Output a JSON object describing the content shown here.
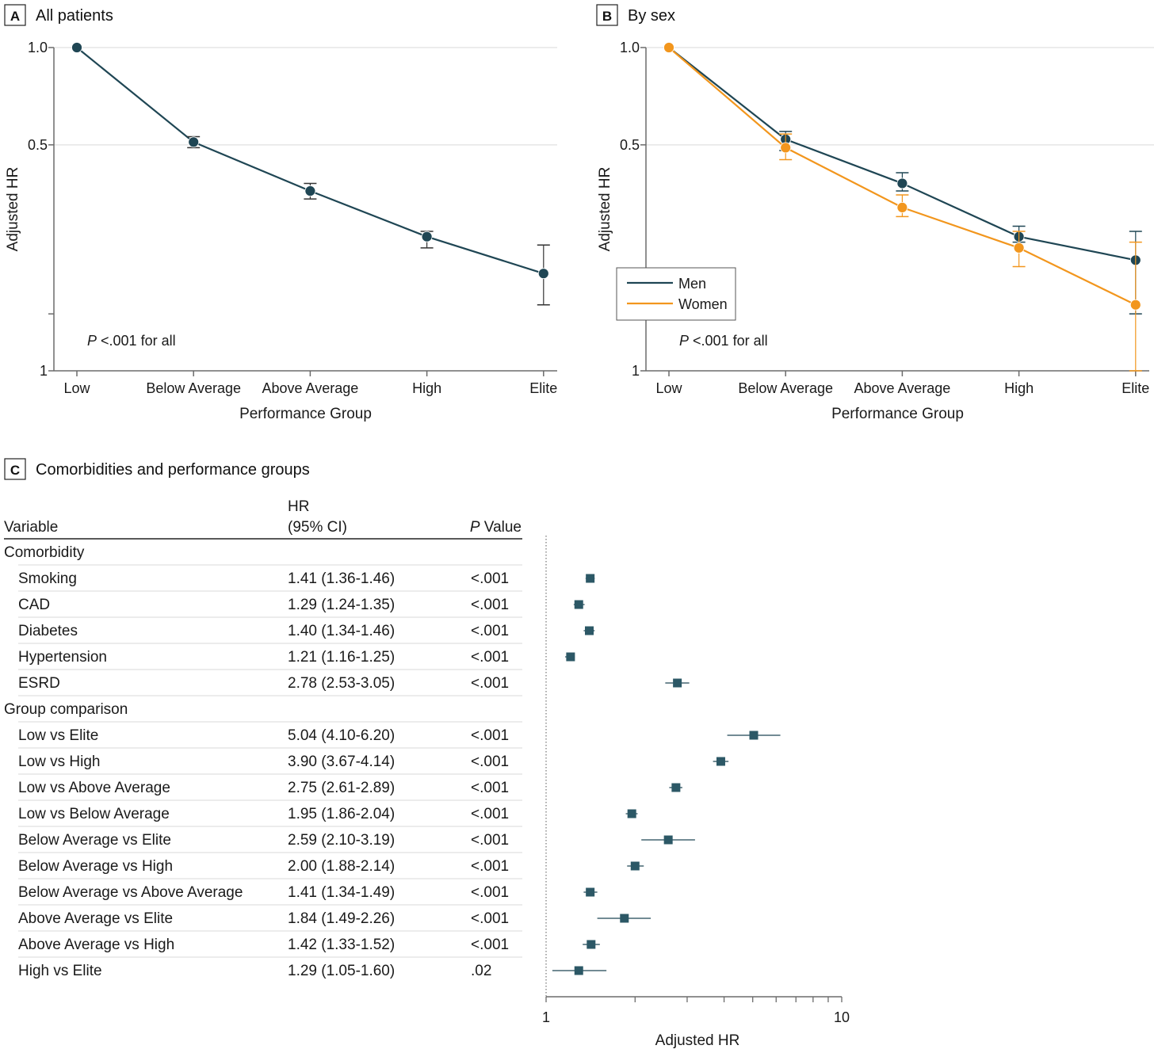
{
  "colors": {
    "men": "#1f4654",
    "women": "#f2961d",
    "axis": "#6b6b6b",
    "grid": "#d9d9d9"
  },
  "chart_data": [
    {
      "type": "line",
      "panel_letter": "A",
      "title": "All patients",
      "xlabel": "Performance Group",
      "ylabel": "Adjusted HR",
      "yscale": "log",
      "ylim": [
        0.1,
        1.0
      ],
      "ytick_labels": [
        "1.0",
        "0.5",
        "1"
      ],
      "categories": [
        "Low",
        "Below Average",
        "Above Average",
        "High",
        "Elite"
      ],
      "annotation": "<.001 for all",
      "annotation_p": "P",
      "series": [
        {
          "name": "All patients",
          "color": "#1f4654",
          "values": [
            1.0,
            0.51,
            0.36,
            0.26,
            0.2
          ],
          "ci_low": [
            null,
            0.49,
            0.34,
            0.24,
            0.16
          ],
          "ci_high": [
            null,
            0.53,
            0.38,
            0.27,
            0.245
          ]
        }
      ]
    },
    {
      "type": "line",
      "panel_letter": "B",
      "title": "By sex",
      "xlabel": "Performance Group",
      "ylabel": "Adjusted HR",
      "yscale": "log",
      "ylim": [
        0.1,
        1.0
      ],
      "ytick_labels": [
        "1.0",
        "0.5",
        "1"
      ],
      "categories": [
        "Low",
        "Below Average",
        "Above Average",
        "High",
        "Elite"
      ],
      "annotation": "<.001 for all",
      "annotation_p": "P",
      "legend_position": "lower-left",
      "series": [
        {
          "name": "Men",
          "color": "#1f4654",
          "values": [
            1.0,
            0.52,
            0.38,
            0.26,
            0.22
          ],
          "ci_low": [
            null,
            0.48,
            0.36,
            0.25,
            0.15
          ],
          "ci_high": [
            null,
            0.55,
            0.41,
            0.28,
            0.27
          ]
        },
        {
          "name": "Women",
          "color": "#f2961d",
          "values": [
            1.0,
            0.49,
            0.32,
            0.24,
            0.16
          ],
          "ci_low": [
            null,
            0.45,
            0.3,
            0.21,
            0.1
          ],
          "ci_high": [
            null,
            0.54,
            0.35,
            0.27,
            0.25
          ]
        }
      ]
    },
    {
      "type": "forest",
      "panel_letter": "C",
      "title": "Comorbidities and performance groups",
      "columns": {
        "variable": "Variable",
        "hr_line1": "HR",
        "hr_line2": "(95% CI)",
        "p_italic": "P",
        "p_rest": "Value"
      },
      "xlabel": "Adjusted HR",
      "xscale": "log",
      "xlim": [
        1,
        10
      ],
      "xtick_labels": [
        "1",
        "10"
      ],
      "groups": [
        {
          "label": "Comorbidity",
          "rows": [
            {
              "variable": "Smoking",
              "hr_text": "1.41 (1.36-1.46)",
              "p": "<.001",
              "hr": 1.41,
              "lo": 1.36,
              "hi": 1.46
            },
            {
              "variable": "CAD",
              "hr_text": "1.29 (1.24-1.35)",
              "p": "<.001",
              "hr": 1.29,
              "lo": 1.24,
              "hi": 1.35
            },
            {
              "variable": "Diabetes",
              "hr_text": "1.40 (1.34-1.46)",
              "p": "<.001",
              "hr": 1.4,
              "lo": 1.34,
              "hi": 1.46
            },
            {
              "variable": "Hypertension",
              "hr_text": "1.21 (1.16-1.25)",
              "p": "<.001",
              "hr": 1.21,
              "lo": 1.16,
              "hi": 1.25
            },
            {
              "variable": "ESRD",
              "hr_text": "2.78 (2.53-3.05)",
              "p": "<.001",
              "hr": 2.78,
              "lo": 2.53,
              "hi": 3.05
            }
          ]
        },
        {
          "label": "Group comparison",
          "rows": [
            {
              "variable": "Low vs Elite",
              "hr_text": "5.04 (4.10-6.20)",
              "p": "<.001",
              "hr": 5.04,
              "lo": 4.1,
              "hi": 6.2
            },
            {
              "variable": "Low vs High",
              "hr_text": "3.90 (3.67-4.14)",
              "p": "<.001",
              "hr": 3.9,
              "lo": 3.67,
              "hi": 4.14
            },
            {
              "variable": "Low vs Above Average",
              "hr_text": "2.75 (2.61-2.89)",
              "p": "<.001",
              "hr": 2.75,
              "lo": 2.61,
              "hi": 2.89
            },
            {
              "variable": "Low vs Below Average",
              "hr_text": "1.95 (1.86-2.04)",
              "p": "<.001",
              "hr": 1.95,
              "lo": 1.86,
              "hi": 2.04
            },
            {
              "variable": "Below Average vs Elite",
              "hr_text": "2.59 (2.10-3.19)",
              "p": "<.001",
              "hr": 2.59,
              "lo": 2.1,
              "hi": 3.19
            },
            {
              "variable": "Below Average vs High",
              "hr_text": "2.00 (1.88-2.14)",
              "p": "<.001",
              "hr": 2.0,
              "lo": 1.88,
              "hi": 2.14
            },
            {
              "variable": "Below Average vs Above Average",
              "hr_text": "1.41 (1.34-1.49)",
              "p": "<.001",
              "hr": 1.41,
              "lo": 1.34,
              "hi": 1.49
            },
            {
              "variable": "Above Average vs Elite",
              "hr_text": "1.84 (1.49-2.26)",
              "p": "<.001",
              "hr": 1.84,
              "lo": 1.49,
              "hi": 2.26
            },
            {
              "variable": "Above Average vs High",
              "hr_text": "1.42 (1.33-1.52)",
              "p": "<.001",
              "hr": 1.42,
              "lo": 1.33,
              "hi": 1.52
            },
            {
              "variable": "High vs Elite",
              "hr_text": "1.29 (1.05-1.60)",
              "p": ".02",
              "hr": 1.29,
              "lo": 1.05,
              "hi": 1.6
            }
          ]
        }
      ]
    }
  ]
}
